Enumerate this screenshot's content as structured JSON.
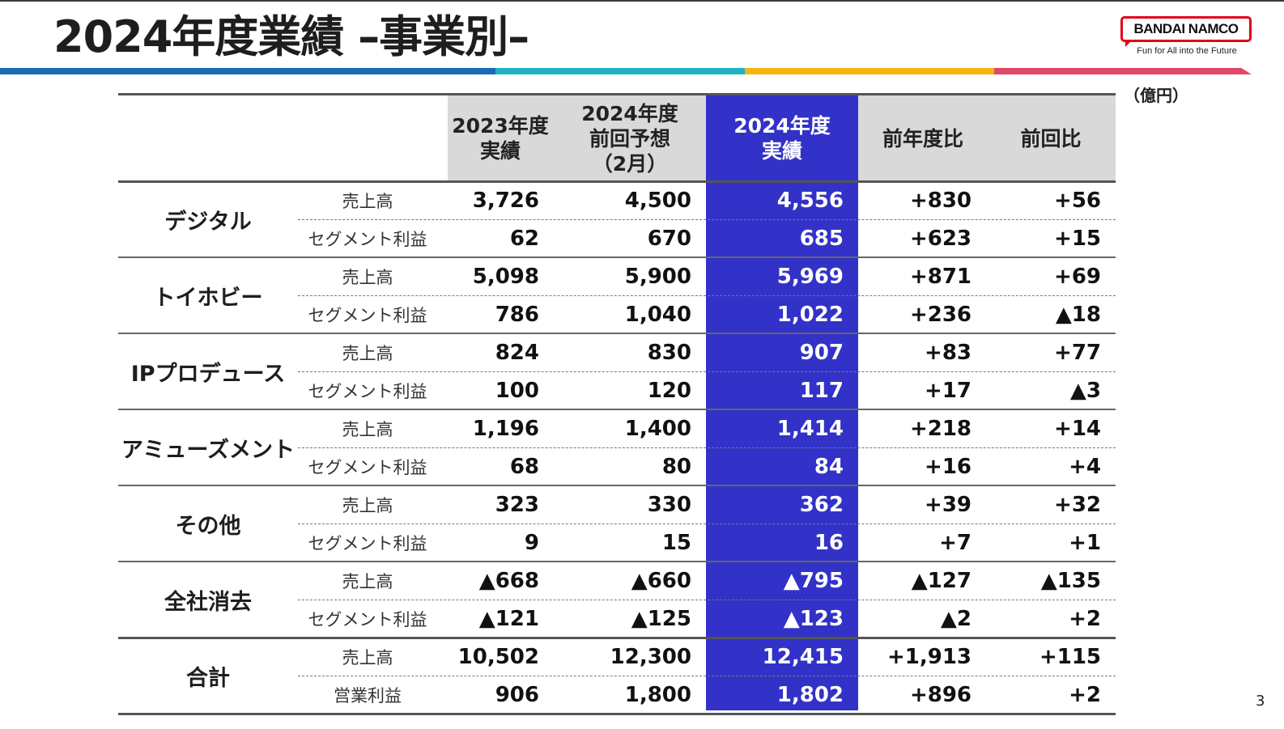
{
  "title": "2024年度業績 –事業別–",
  "logo": {
    "brand": "BANDAI NAMCO",
    "tagline": "Fun for All into the Future"
  },
  "unit": "（億円）",
  "page_number": "3",
  "colors": {
    "highlight_column": "#3232c8",
    "header_bg": "#d9d9d9",
    "band": [
      "#1b6ab5",
      "#22b3c2",
      "#f4b512",
      "#e04a66"
    ]
  },
  "table": {
    "headers": [
      {
        "lines": [
          "2023年度",
          "実績"
        ]
      },
      {
        "lines": [
          "2024年度",
          "前回予想",
          "（2月）"
        ]
      },
      {
        "lines": [
          "2024年度",
          "実績"
        ]
      },
      {
        "lines": [
          "前年度比"
        ]
      },
      {
        "lines": [
          "前回比"
        ]
      }
    ],
    "segments": [
      {
        "name": "デジタル",
        "rows": [
          {
            "metric": "売上高",
            "values": [
              "3,726",
              "4,500",
              "4,556",
              "+830",
              "+56"
            ]
          },
          {
            "metric": "セグメント利益",
            "values": [
              "62",
              "670",
              "685",
              "+623",
              "+15"
            ]
          }
        ]
      },
      {
        "name": "トイホビー",
        "rows": [
          {
            "metric": "売上高",
            "values": [
              "5,098",
              "5,900",
              "5,969",
              "+871",
              "+69"
            ]
          },
          {
            "metric": "セグメント利益",
            "values": [
              "786",
              "1,040",
              "1,022",
              "+236",
              "▲18"
            ]
          }
        ]
      },
      {
        "name": "IPプロデュース",
        "rows": [
          {
            "metric": "売上高",
            "values": [
              "824",
              "830",
              "907",
              "+83",
              "+77"
            ]
          },
          {
            "metric": "セグメント利益",
            "values": [
              "100",
              "120",
              "117",
              "+17",
              "▲3"
            ]
          }
        ]
      },
      {
        "name": "アミューズメント",
        "rows": [
          {
            "metric": "売上高",
            "values": [
              "1,196",
              "1,400",
              "1,414",
              "+218",
              "+14"
            ]
          },
          {
            "metric": "セグメント利益",
            "values": [
              "68",
              "80",
              "84",
              "+16",
              "+4"
            ]
          }
        ]
      },
      {
        "name": "その他",
        "rows": [
          {
            "metric": "売上高",
            "values": [
              "323",
              "330",
              "362",
              "+39",
              "+32"
            ]
          },
          {
            "metric": "セグメント利益",
            "values": [
              "9",
              "15",
              "16",
              "+7",
              "+1"
            ]
          }
        ]
      },
      {
        "name": "全社消去",
        "rows": [
          {
            "metric": "売上高",
            "values": [
              "▲668",
              "▲660",
              "▲795",
              "▲127",
              "▲135"
            ]
          },
          {
            "metric": "セグメント利益",
            "values": [
              "▲121",
              "▲125",
              "▲123",
              "▲2",
              "+2"
            ]
          }
        ]
      },
      {
        "name": "合計",
        "rows": [
          {
            "metric": "売上高",
            "values": [
              "10,502",
              "12,300",
              "12,415",
              "+1,913",
              "+115"
            ]
          },
          {
            "metric": "営業利益",
            "values": [
              "906",
              "1,800",
              "1,802",
              "+896",
              "+2"
            ]
          }
        ]
      }
    ]
  }
}
